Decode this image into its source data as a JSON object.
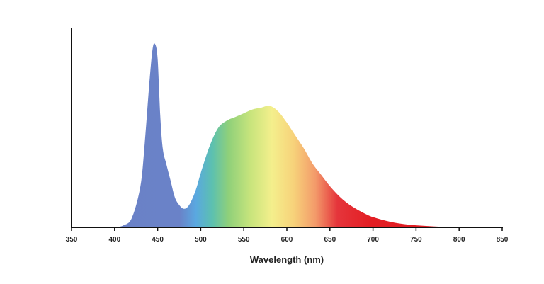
{
  "chart_data": {
    "type": "area",
    "title": "",
    "xlabel": "Wavelength (nm)",
    "ylabel": "",
    "xlim": [
      350,
      850
    ],
    "ylim": [
      0,
      1.0
    ],
    "xticks": [
      350,
      400,
      450,
      500,
      550,
      600,
      650,
      700,
      750,
      800,
      850
    ],
    "yticks_shown": false,
    "grid": false,
    "fill": "visible spectrum gradient (blue → cyan → green → yellow → orange → red)",
    "series": [
      {
        "x": [
          400,
          410,
          420,
          430,
          435,
          440,
          444,
          447,
          450,
          453,
          456,
          460,
          465,
          470,
          475,
          480,
          485,
          490,
          495,
          500,
          510,
          520,
          530,
          540,
          550,
          560,
          570,
          580,
          590,
          600,
          610,
          620,
          630,
          640,
          650,
          660,
          670,
          680,
          690,
          700,
          720,
          740,
          760,
          780,
          800
        ],
        "y": [
          0.0,
          0.01,
          0.05,
          0.22,
          0.45,
          0.75,
          0.95,
          0.98,
          0.9,
          0.6,
          0.42,
          0.34,
          0.25,
          0.16,
          0.12,
          0.1,
          0.11,
          0.15,
          0.21,
          0.29,
          0.43,
          0.53,
          0.57,
          0.59,
          0.61,
          0.63,
          0.64,
          0.65,
          0.62,
          0.56,
          0.49,
          0.42,
          0.34,
          0.28,
          0.22,
          0.17,
          0.13,
          0.1,
          0.075,
          0.055,
          0.03,
          0.015,
          0.008,
          0.003,
          0.0
        ]
      }
    ]
  }
}
